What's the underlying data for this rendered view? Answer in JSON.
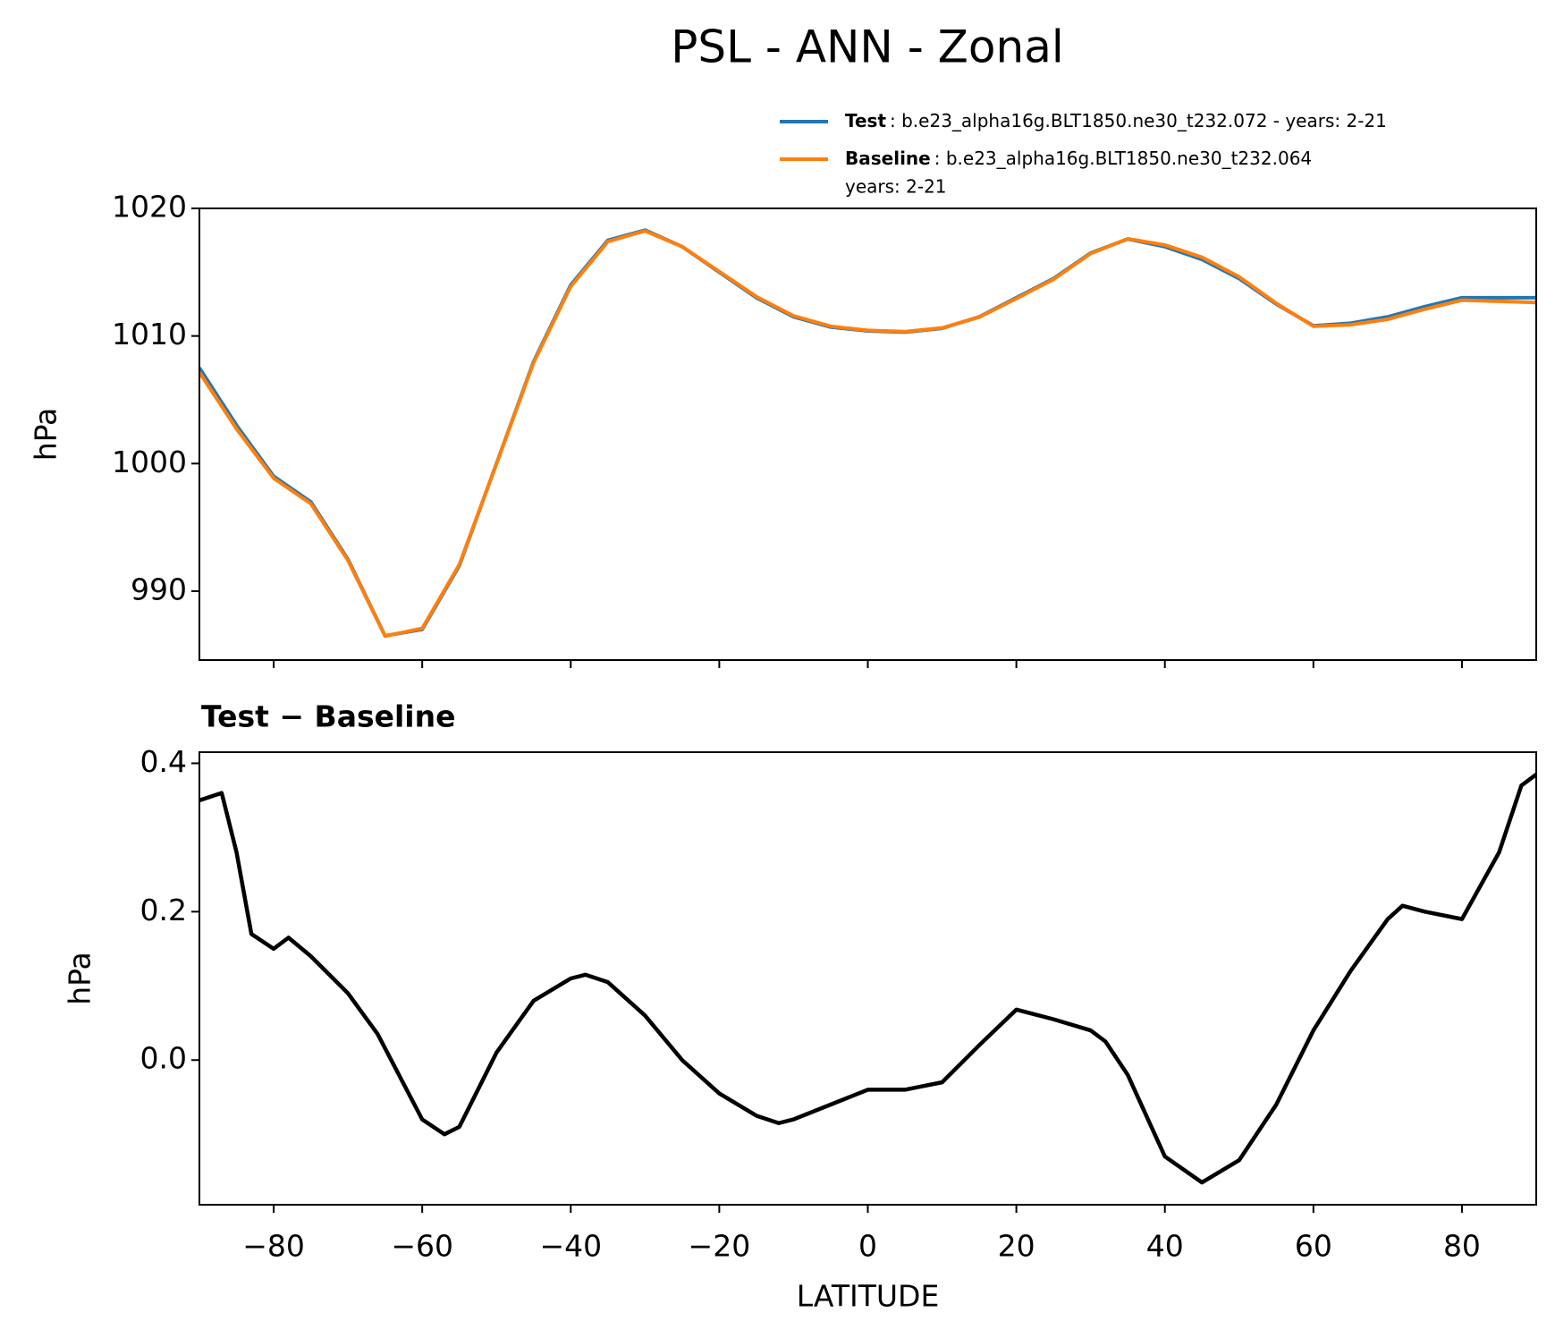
{
  "chart_data": [
    {
      "type": "line",
      "title": "PSL - ANN - Zonal",
      "ylabel": "hPa",
      "x": [
        -90,
        -85,
        -80,
        -75,
        -70,
        -65,
        -60,
        -55,
        -50,
        -45,
        -40,
        -35,
        -30,
        -25,
        -20,
        -15,
        -10,
        -5,
        0,
        5,
        10,
        15,
        20,
        25,
        30,
        35,
        40,
        45,
        50,
        55,
        60,
        65,
        70,
        75,
        80,
        85,
        90
      ],
      "series": [
        {
          "name": "Test",
          "description": [
            ": b.e23_alpha16g.BLT1850.ne30_t232.072 - years: 2-21"
          ],
          "color": "#1f77b4",
          "values": [
            1007.5,
            1003,
            999,
            997,
            992.5,
            986.5,
            987,
            992,
            1000,
            1008,
            1014,
            1017.5,
            1018.3,
            1017,
            1015,
            1013,
            1011.5,
            1010.7,
            1010.4,
            1010.3,
            1010.6,
            1011.5,
            1013,
            1014.5,
            1016.5,
            1017.6,
            1017,
            1016,
            1014.5,
            1012.5,
            1010.8,
            1011,
            1011.5,
            1012.3,
            1013,
            1013,
            1013
          ]
        },
        {
          "name": "Baseline",
          "description": [
            ": b.e23_alpha16g.BLT1850.ne30_t232.064",
            "years: 2-21"
          ],
          "color": "#ff7f0e",
          "values": [
            1007.15,
            1002.72,
            998.85,
            996.86,
            992.41,
            986.48,
            987.08,
            992.09,
            999.99,
            1007.92,
            1013.89,
            1017.4,
            1018.24,
            1017.0,
            1015.05,
            1013.08,
            1011.58,
            1010.76,
            1010.44,
            1010.34,
            1010.63,
            1011.48,
            1012.93,
            1014.45,
            1016.46,
            1017.62,
            1017.13,
            1016.17,
            1014.64,
            1012.56,
            1010.76,
            1010.88,
            1011.31,
            1012.1,
            1012.81,
            1012.72,
            1012.62
          ]
        }
      ],
      "xlim": [
        -90,
        90
      ],
      "ylim": [
        984.6,
        1020
      ],
      "yticks": [
        990,
        1000,
        1010,
        1020
      ],
      "legend": "upper right"
    },
    {
      "type": "line",
      "title": "Test − Baseline",
      "ylabel": "hPa",
      "xlabel": "LATITUDE",
      "x": [
        -90,
        -87,
        -85,
        -83,
        -80,
        -78,
        -75,
        -70,
        -66,
        -60,
        -57,
        -55,
        -50,
        -45,
        -40,
        -38,
        -35,
        -30,
        -25,
        -20,
        -15,
        -12,
        -10,
        -5,
        0,
        5,
        10,
        15,
        20,
        25,
        30,
        32,
        35,
        40,
        45,
        50,
        55,
        60,
        65,
        70,
        72,
        75,
        80,
        85,
        88,
        90
      ],
      "series": [
        {
          "color": "#000000",
          "values": [
            0.35,
            0.36,
            0.28,
            0.17,
            0.15,
            0.165,
            0.14,
            0.09,
            0.035,
            -0.08,
            -0.1,
            -0.09,
            0.01,
            0.08,
            0.11,
            0.115,
            0.105,
            0.06,
            0.0,
            -0.045,
            -0.075,
            -0.085,
            -0.08,
            -0.06,
            -0.04,
            -0.04,
            -0.03,
            0.02,
            0.068,
            0.055,
            0.04,
            0.025,
            -0.02,
            -0.13,
            -0.165,
            -0.135,
            -0.06,
            0.04,
            0.12,
            0.19,
            0.208,
            0.2,
            0.19,
            0.28,
            0.37,
            0.385
          ]
        }
      ],
      "xlim": [
        -90,
        90
      ],
      "xticks": [
        {
          "value": -80,
          "label": "−80"
        },
        {
          "value": -60,
          "label": "−60"
        },
        {
          "value": -40,
          "label": "−40"
        },
        {
          "value": -20,
          "label": "−20"
        },
        0,
        20,
        40,
        60,
        80
      ],
      "ylim": [
        -0.195,
        0.415
      ],
      "yticks": [
        {
          "value": 0,
          "label": "0.0"
        },
        {
          "value": 0.2,
          "label": "0.2"
        },
        {
          "value": 0.4,
          "label": "0.4"
        }
      ]
    }
  ]
}
